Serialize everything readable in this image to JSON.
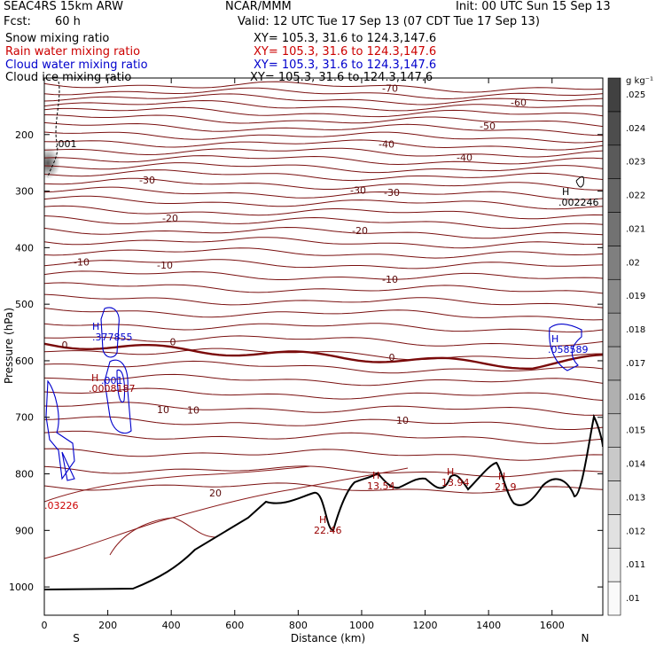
{
  "header": {
    "model": "SEAC4RS 15km ARW",
    "org": "NCAR/MMM",
    "init": "Init: 00 UTC Sun 15 Sep 13",
    "fcst_label": "Fcst:",
    "fcst_value": "60 h",
    "valid": "Valid: 12 UTC Tue 17 Sep 13 (07 CDT Tue 17 Sep 13)"
  },
  "fields": [
    {
      "name": "Snow mixing ratio",
      "xy": "XY= 105.3, 31.6 to 124.3,147.6",
      "color": "#000000"
    },
    {
      "name": "Rain water mixing ratio",
      "xy": "XY= 105.3, 31.6 to 124.3,147.6",
      "color": "#cc0000"
    },
    {
      "name": "Cloud water mixing ratio",
      "xy": "XY= 105.3, 31.6 to 124.3,147.6",
      "color": "#0000cc"
    },
    {
      "name": "Cloud ice mixing ratio",
      "xy": "XY= 105.3, 31.6 to 124.3,147.6",
      "color": "#000000"
    }
  ],
  "chart_data": {
    "type": "cross-section contour",
    "ylabel": "Pressure (hPa)",
    "xlabel": "Distance (km)",
    "x_ticks": [
      "0",
      "200",
      "400",
      "600",
      "800",
      "1000",
      "1200",
      "1400",
      "1600"
    ],
    "x_tick_values": [
      0,
      200,
      400,
      600,
      800,
      1000,
      1200,
      1400,
      1600
    ],
    "y_ticks": [
      "200",
      "300",
      "400",
      "500",
      "600",
      "700",
      "800",
      "900",
      "1000"
    ],
    "y_tick_values": [
      200,
      300,
      400,
      500,
      600,
      700,
      800,
      900,
      1000
    ],
    "xlim": [
      0,
      1760
    ],
    "ylim": [
      100,
      1050
    ],
    "left_end": "S",
    "right_end": "N",
    "temperature_contours": [
      {
        "label": "-70",
        "p": 118
      },
      {
        "label": "-60",
        "p": 143
      },
      {
        "label": "-50",
        "p": 185
      },
      {
        "label": "-40",
        "p": 217
      },
      {
        "label": "-40",
        "p": 240
      },
      {
        "label": "-30",
        "p": 280
      },
      {
        "label": "-30",
        "p": 298
      },
      {
        "label": "-30",
        "p": 302
      },
      {
        "label": "-20",
        "p": 348
      },
      {
        "label": "-20",
        "p": 370
      },
      {
        "label": "-10",
        "p": 425
      },
      {
        "label": "-10",
        "p": 431
      },
      {
        "label": "-10",
        "p": 456
      },
      {
        "label": "0",
        "p": 572
      },
      {
        "label": "0",
        "p": 566
      },
      {
        "label": "0",
        "p": 594
      },
      {
        "label": "10",
        "p": 686
      },
      {
        "label": "10",
        "p": 687
      },
      {
        "label": "10",
        "p": 705
      },
      {
        "label": "20",
        "p": 834
      }
    ],
    "annotations": [
      {
        "marker": "H",
        "value": ".377855",
        "color": "#0000cc"
      },
      {
        "marker": "H",
        "value": ".0008187",
        "color": "#990000"
      },
      {
        "marker": "",
        "value": ".001",
        "color": "#0000cc"
      },
      {
        "marker": "H",
        "value": ".058589",
        "color": "#0000cc"
      },
      {
        "marker": "H",
        "value": ".002246",
        "color": "#000000"
      },
      {
        "marker": "",
        "value": ".001",
        "color": "#000000"
      },
      {
        "marker": "",
        "value": ".03226",
        "color": "#cc0000"
      },
      {
        "marker": "H",
        "value": "13.54",
        "color": "#990000"
      },
      {
        "marker": "H",
        "value": "13.94",
        "color": "#990000"
      },
      {
        "marker": "H",
        "value": "21.9",
        "color": "#990000"
      },
      {
        "marker": "H",
        "value": "22.46",
        "color": "#990000"
      }
    ],
    "colorbar": {
      "unit": "g kg⁻¹",
      "labels": [
        ".01",
        ".011",
        ".012",
        ".013",
        ".014",
        ".015",
        ".016",
        ".017",
        ".018",
        ".019",
        ".02",
        ".021",
        ".022",
        ".023",
        ".024",
        ".025"
      ]
    },
    "colors": {
      "isotherm": "#7a1010",
      "zero_isotherm": "#7a0a0a",
      "terrain": "#000000",
      "cloud_water": "#0000cc"
    }
  }
}
